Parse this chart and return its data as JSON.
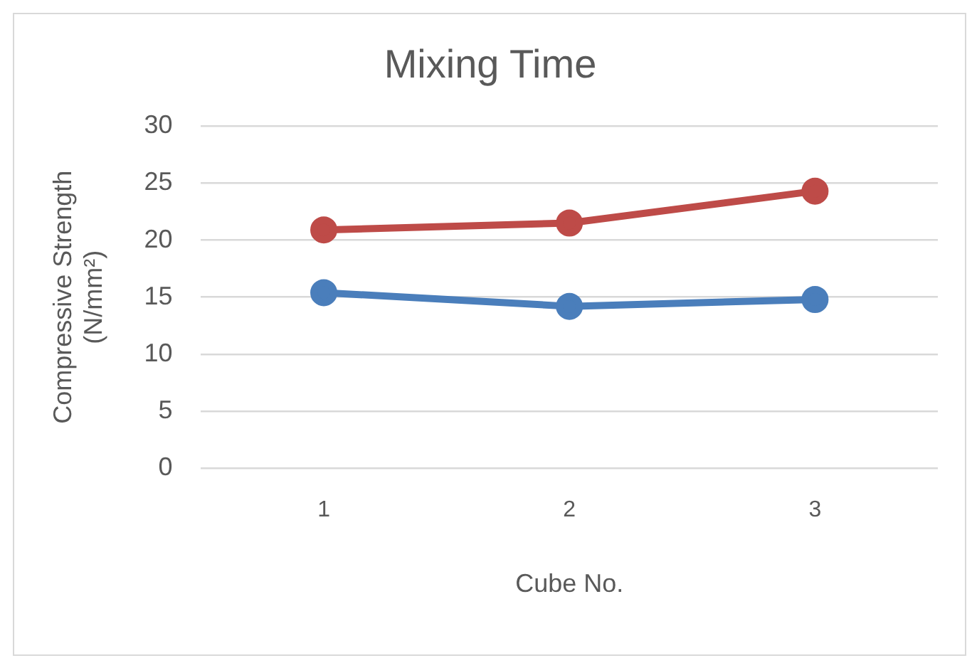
{
  "chart_data": {
    "type": "line",
    "title": "Mixing Time",
    "xlabel": "Cube No.",
    "ylabel": "Compressive Strength (N/mm²)",
    "categories": [
      "1",
      "2",
      "3"
    ],
    "series": [
      {
        "color": "#4a7ebb",
        "values": [
          15.4,
          14.2,
          14.8
        ]
      },
      {
        "color": "#be4b48",
        "values": [
          20.9,
          21.5,
          24.3
        ]
      }
    ],
    "ylim": [
      0,
      30
    ],
    "yticks": [
      0,
      5,
      10,
      15,
      20,
      25,
      30
    ],
    "grid": "y",
    "legend": false,
    "marker": "circle",
    "line_style": "solid"
  }
}
